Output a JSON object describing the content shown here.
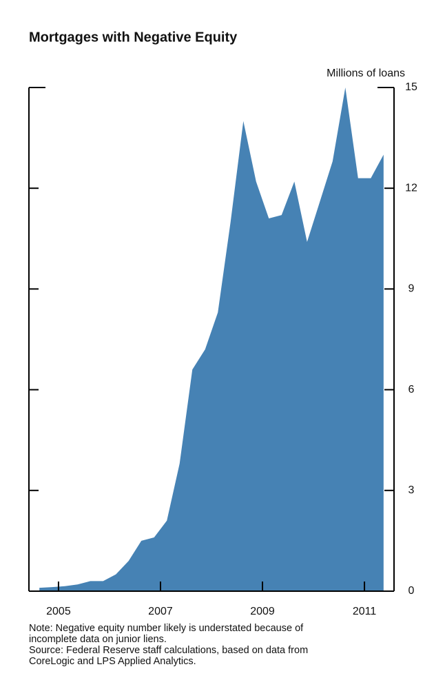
{
  "chart_data": {
    "type": "area",
    "title": "Mortgages with Negative Equity",
    "y_axis_label": "Millions of loans",
    "x": [
      2004.625,
      2004.875,
      2005.125,
      2005.375,
      2005.625,
      2005.875,
      2006.125,
      2006.375,
      2006.625,
      2006.875,
      2007.125,
      2007.375,
      2007.625,
      2007.875,
      2008.125,
      2008.375,
      2008.625,
      2008.875,
      2009.125,
      2009.375,
      2009.625,
      2009.875,
      2010.125,
      2010.375,
      2010.625,
      2010.875,
      2011.125,
      2011.375
    ],
    "series": [
      {
        "name": "Mortgages with negative equity",
        "color": "#4682b4",
        "values": [
          0.1,
          0.12,
          0.15,
          0.2,
          0.3,
          0.3,
          0.5,
          0.9,
          1.5,
          1.6,
          2.1,
          3.8,
          6.6,
          7.2,
          8.3,
          11.0,
          14.0,
          12.2,
          11.1,
          11.2,
          12.2,
          10.4,
          11.6,
          12.8,
          15.0,
          12.3,
          12.3,
          13.0
        ]
      }
    ],
    "xlim": [
      2004.42,
      2011.58
    ],
    "xticks": [
      2005,
      2007,
      2009,
      2011
    ],
    "ylim": [
      0,
      15
    ],
    "yticks": [
      0,
      3,
      6,
      9,
      12,
      15
    ],
    "y_axis_side": "right",
    "notes": [
      "Note: Negative equity number likely is understated because of",
      "incomplete data on junior liens.",
      "Source: Federal Reserve staff calculations, based on data from",
      "CoreLogic and LPS Applied Analytics."
    ]
  }
}
